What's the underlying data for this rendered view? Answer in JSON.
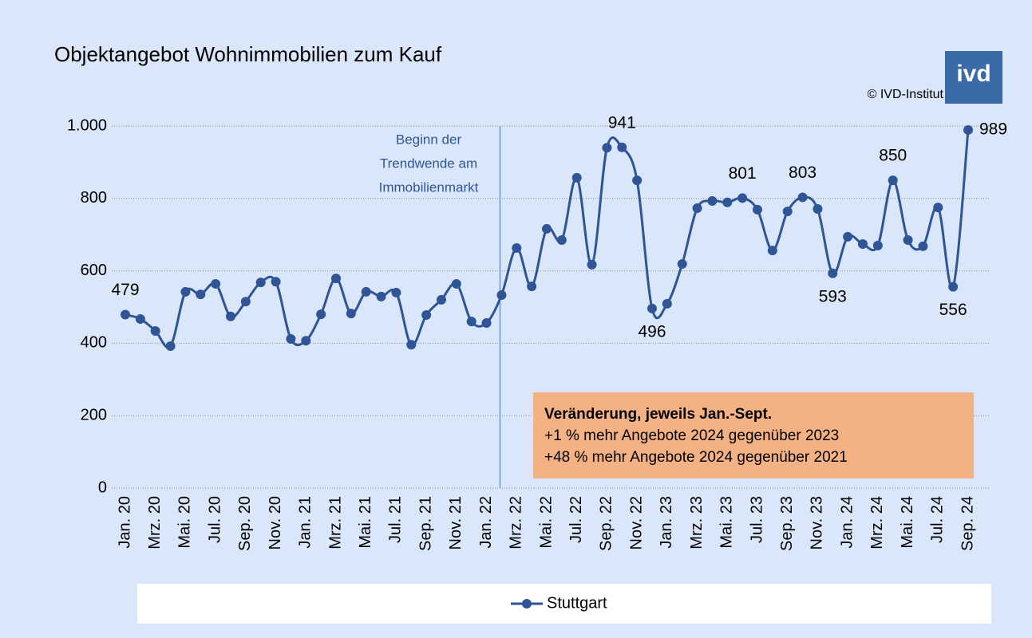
{
  "chart_data": {
    "type": "line",
    "title": "Objektangebot Wohnimmobilien zum Kauf",
    "source": "© IVD-Institut",
    "logo": "ivd",
    "categories": [
      "Jan. 20",
      null,
      "Mrz. 20",
      null,
      "Mai. 20",
      null,
      "Jul. 20",
      null,
      "Sep. 20",
      null,
      "Nov. 20",
      null,
      "Jan. 21",
      null,
      "Mrz. 21",
      null,
      "Mai. 21",
      null,
      "Jul. 21",
      null,
      "Sep. 21",
      null,
      "Nov. 21",
      null,
      "Jan. 22",
      null,
      "Mrz. 22",
      null,
      "Mai. 22",
      null,
      "Jul. 22",
      null,
      "Sep. 22",
      null,
      "Nov. 22",
      null,
      "Jan. 23",
      null,
      "Mrz. 23",
      null,
      "Mai. 23",
      null,
      "Jul. 23",
      null,
      "Sep. 23",
      null,
      "Nov. 23",
      null,
      "Jan. 24",
      null,
      "Mrz. 24",
      null,
      "Mai. 24",
      null,
      "Jul. 24",
      null,
      "Sep. 24"
    ],
    "series": [
      {
        "name": "Stuttgart",
        "color": "#2f5597",
        "values": [
          479,
          467,
          434,
          392,
          542,
          535,
          564,
          474,
          515,
          568,
          570,
          412,
          407,
          480,
          579,
          482,
          542,
          529,
          540,
          396,
          478,
          520,
          564,
          460,
          456,
          533,
          663,
          557,
          716,
          685,
          857,
          617,
          940,
          941,
          850,
          496,
          509,
          619,
          773,
          793,
          789,
          801,
          769,
          656,
          764,
          803,
          771,
          593,
          694,
          674,
          670,
          850,
          685,
          668,
          775,
          556,
          989
        ],
        "value_labels": [
          "479",
          null,
          null,
          null,
          null,
          null,
          null,
          null,
          null,
          null,
          null,
          null,
          null,
          null,
          null,
          null,
          null,
          null,
          null,
          null,
          null,
          null,
          null,
          null,
          null,
          null,
          null,
          null,
          null,
          null,
          null,
          null,
          null,
          "941",
          null,
          "496",
          null,
          null,
          null,
          null,
          null,
          "801",
          null,
          null,
          null,
          "803",
          null,
          "593",
          null,
          null,
          null,
          "850",
          null,
          null,
          null,
          "556",
          "989"
        ]
      }
    ],
    "ylim": [
      0,
      1000
    ],
    "yticks": [
      0,
      200,
      400,
      600,
      800,
      {
        "value": 1000,
        "label": "1.000"
      }
    ],
    "grid": true,
    "legend": "bottom",
    "annotations": [
      {
        "text": [
          "Beginn der",
          "Trendwende am",
          "Immobilienmarkt"
        ],
        "category": 25
      },
      {
        "text": [
          "Veränderung, jeweils Jan.-Sept.",
          "+1 % mehr Angebote 2024 gegenüber 2023",
          "+48 % mehr Angebote 2024 gegenüber 2021"
        ]
      }
    ]
  }
}
